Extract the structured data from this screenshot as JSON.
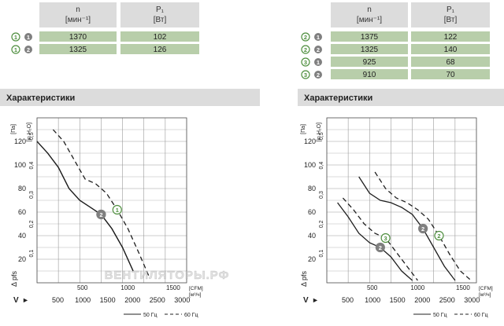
{
  "colors": {
    "header_fill": "#dcdcdc",
    "green_fill": "#b8ceaa",
    "curve_black": "#1e1e1e",
    "grey_marker": "#7f7f7f",
    "green_marker": "#4f8f3f",
    "axis_black": "#222222"
  },
  "tables": [
    {
      "col_headers": [
        {
          "title": "n",
          "unit": "[мин⁻¹]"
        },
        {
          "title": "P₁",
          "unit": "[Вт]"
        }
      ],
      "rows": [
        {
          "circle": "1",
          "circle_color": "green",
          "disk": "1",
          "n": "1370",
          "p": "102"
        },
        {
          "circle": "1",
          "circle_color": "green",
          "disk": "2",
          "n": "1325",
          "p": "126"
        }
      ]
    },
    {
      "col_headers": [
        {
          "title": "n",
          "unit": "[мин⁻¹]"
        },
        {
          "title": "P₁",
          "unit": "[Вт]"
        }
      ],
      "rows": [
        {
          "circle": "2",
          "circle_color": "green",
          "disk": "1",
          "n": "1375",
          "p": "122"
        },
        {
          "circle": "2",
          "circle_color": "green",
          "disk": "2",
          "n": "1325",
          "p": "140"
        },
        {
          "circle": "3",
          "circle_color": "green",
          "disk": "1",
          "n": "925",
          "p": "68"
        },
        {
          "circle": "3",
          "circle_color": "green",
          "disk": "2",
          "n": "910",
          "p": "70"
        }
      ]
    }
  ],
  "section_titles": [
    "Характеристики",
    "Характеристики"
  ],
  "watermark": "ВЕНТИЛЯТОРЫ.РФ",
  "chart_data": [
    {
      "type": "line",
      "title": "Характеристики",
      "ylabel": "Δ pfs",
      "yunit": "[Па]",
      "y2unit": "[in H₂O]",
      "xunit_cfm": "[CFM]",
      "xunit_m3h": "[м³/ч]",
      "xlabel": "V",
      "ylim": [
        0,
        140
      ],
      "yticks": [
        20,
        40,
        60,
        80,
        100,
        120
      ],
      "y2ticks": [
        "0,1",
        "0,2",
        "0,3",
        "0,4",
        "0,5"
      ],
      "cfm_ticks": [
        "500",
        "1000",
        "1500"
      ],
      "m3h_ticks": [
        "500",
        "1000",
        "1500",
        "2000",
        "2500",
        "3000"
      ],
      "legend": [
        {
          "label": "50 Гц",
          "style": "solid"
        },
        {
          "label": "60 Гц",
          "style": "dashed"
        }
      ],
      "series": [
        {
          "marker": "1",
          "marker_color": "grey",
          "style": "solid",
          "x": [
            0,
            200,
            400,
            600,
            800,
            1000,
            1200,
            1400,
            1600,
            1800
          ],
          "y": [
            120,
            110,
            98,
            80,
            70,
            64,
            58,
            46,
            30,
            10
          ]
        },
        {
          "marker": "2",
          "marker_color": "grey",
          "style": "solid",
          "x": [
            0,
            200,
            400,
            600,
            800,
            1000,
            1200,
            1400,
            1600,
            1800
          ],
          "y": [
            120,
            110,
            98,
            80,
            70,
            64,
            58,
            46,
            30,
            10
          ]
        },
        {
          "marker": "1",
          "marker_color": "green",
          "style": "dashed",
          "x": [
            300,
            500,
            700,
            900,
            1100,
            1300,
            1500,
            1700,
            1900,
            2100
          ],
          "y": [
            130,
            120,
            104,
            88,
            84,
            76,
            62,
            46,
            26,
            5
          ]
        }
      ]
    },
    {
      "type": "line",
      "title": "Характеристики",
      "ylabel": "Δ pfs",
      "yunit": "[Па]",
      "y2unit": "[in H₂O]",
      "xunit_cfm": "[CFM]",
      "xunit_m3h": "[м³/ч]",
      "xlabel": "V",
      "ylim": [
        0,
        140
      ],
      "yticks": [
        20,
        40,
        60,
        80,
        100,
        120
      ],
      "y2ticks": [
        "0,1",
        "0,2",
        "0,3",
        "0,4",
        "0,5"
      ],
      "cfm_ticks": [
        "500",
        "1000",
        "1500"
      ],
      "m3h_ticks": [
        "500",
        "1000",
        "1500",
        "2000",
        "2500",
        "3000"
      ],
      "legend": [
        {
          "label": "50 Гц",
          "style": "solid"
        },
        {
          "label": "60 Гц",
          "style": "dashed"
        }
      ],
      "series": [
        {
          "marker": "2",
          "marker_color": "grey",
          "style": "solid",
          "x": [
            600,
            800,
            1000,
            1200,
            1400,
            1600,
            1800,
            2000,
            2200,
            2400
          ],
          "y": [
            90,
            76,
            70,
            68,
            64,
            58,
            46,
            30,
            14,
            2
          ]
        },
        {
          "marker": "2",
          "marker_color": "green",
          "style": "dashed",
          "x": [
            900,
            1100,
            1300,
            1500,
            1700,
            1900,
            2100,
            2300,
            2500,
            2700
          ],
          "y": [
            94,
            80,
            72,
            68,
            62,
            54,
            40,
            24,
            10,
            2
          ]
        },
        {
          "marker": "2",
          "marker_color": "grey",
          "style": "solid",
          "x": [
            200,
            400,
            600,
            800,
            1000,
            1200,
            1400,
            1600
          ],
          "y": [
            68,
            56,
            42,
            34,
            30,
            22,
            10,
            2
          ]
        },
        {
          "marker": "3",
          "marker_color": "green",
          "style": "dashed",
          "x": [
            300,
            500,
            700,
            900,
            1100,
            1300,
            1500,
            1700
          ],
          "y": [
            72,
            62,
            50,
            42,
            38,
            26,
            14,
            2
          ]
        }
      ]
    }
  ]
}
